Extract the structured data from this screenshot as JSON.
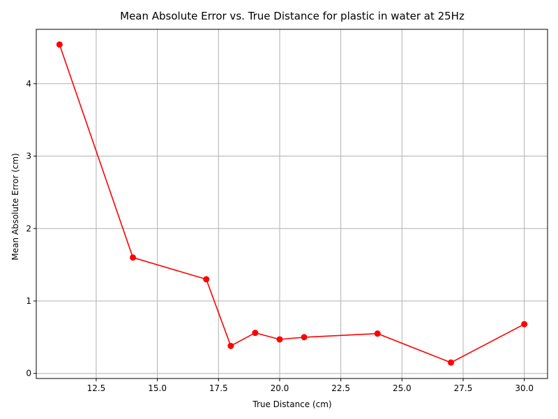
{
  "chart_data": {
    "type": "line",
    "title": "Mean Absolute Error vs. True Distance for plastic in water at 25Hz",
    "xlabel": "True Distance (cm)",
    "ylabel": "Mean Absolute Error (cm)",
    "xlim": [
      10.05,
      30.95
    ],
    "ylim": [
      -0.07,
      4.75
    ],
    "xticks": [
      12.5,
      15.0,
      17.5,
      20.0,
      22.5,
      25.0,
      27.5,
      30.0
    ],
    "xtick_labels": [
      "12.5",
      "15.0",
      "17.5",
      "20.0",
      "22.5",
      "25.0",
      "27.5",
      "30.0"
    ],
    "yticks": [
      0,
      1,
      2,
      3,
      4
    ],
    "ytick_labels": [
      "0",
      "1",
      "2",
      "3",
      "4"
    ],
    "grid": true,
    "color": "#ff0000",
    "marker": "circle",
    "series": [
      {
        "x": [
          11,
          14,
          17,
          18,
          19,
          20,
          21,
          24,
          27,
          30
        ],
        "values": [
          4.54,
          1.6,
          1.3,
          0.38,
          0.56,
          0.47,
          0.5,
          0.55,
          0.15,
          0.68
        ]
      }
    ]
  }
}
